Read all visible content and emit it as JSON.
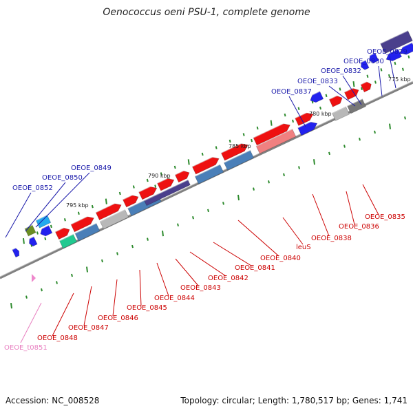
{
  "title": "Oenococcus oeni PSU-1, complete genome",
  "footer": {
    "accession": "Accession: NC_008528",
    "summary": "Topology: circular; Length: 1,780,517 bp; Genes: 1,741"
  },
  "scale_labels": [
    "775 kbp",
    "780 kbp",
    "785 kbp",
    "790 kbp",
    "795 kbp"
  ],
  "blue_labels": [
    "OEOE_0829",
    "OEOE_0830",
    "OEOE_0832",
    "OEOE_0833",
    "OEOE_0837",
    "OEOE_0849",
    "OEOE_0850",
    "OEOE_0852"
  ],
  "red_labels": [
    "OEOE_0835",
    "OEOE_0836",
    "OEOE_0838",
    "leuS",
    "OEOE_0840",
    "OEOE_0841",
    "OEOE_0842",
    "OEOE_0843",
    "OEOE_0844",
    "OEOE_0845",
    "OEOE_0846",
    "OEOE_0847",
    "OEOE_0848"
  ],
  "pink_labels": [
    "OEOE_t0851"
  ],
  "colors": {
    "blue_label": "#1a1aaa",
    "red_label": "#cc0000",
    "pink_label": "#e87fc0",
    "backbone": "#808080",
    "gene_red": "#ee1111",
    "gene_blue": "#2222ee",
    "gene_steel": "#4a7fb8",
    "gene_navy": "#4a3f8c",
    "gene_grey": "#b8b8b8",
    "tick": "#2e8b2e"
  }
}
